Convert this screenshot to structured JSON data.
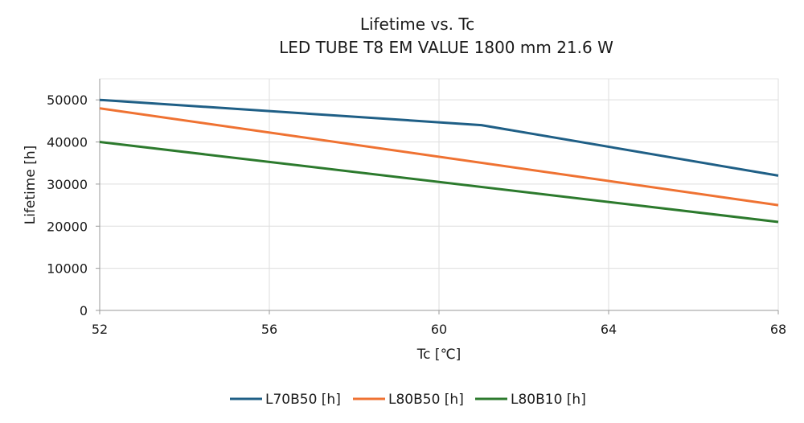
{
  "chart_data": {
    "type": "line",
    "title": "Lifetime vs. Tc",
    "subtitle": "LED TUBE T8 EM VALUE 1800 mm 21.6 W",
    "xlabel": "Tc [℃]",
    "ylabel": "Lifetime [h]",
    "xlim": [
      52,
      68
    ],
    "ylim": [
      0,
      55000
    ],
    "xticks": [
      52,
      56,
      60,
      64,
      68
    ],
    "yticks": [
      0,
      10000,
      20000,
      30000,
      40000,
      50000
    ],
    "grid": true,
    "legend_position": "bottom",
    "series": [
      {
        "name": "L70B50 [h]",
        "color": "#1f5f86",
        "x": [
          52,
          61,
          68
        ],
        "y": [
          50000,
          44000,
          32000
        ]
      },
      {
        "name": "L80B50 [h]",
        "color": "#ef7232",
        "x": [
          52,
          68
        ],
        "y": [
          48000,
          25000
        ]
      },
      {
        "name": "L80B10 [h]",
        "color": "#2c7a2d",
        "x": [
          52,
          68
        ],
        "y": [
          40000,
          21000
        ]
      }
    ]
  }
}
